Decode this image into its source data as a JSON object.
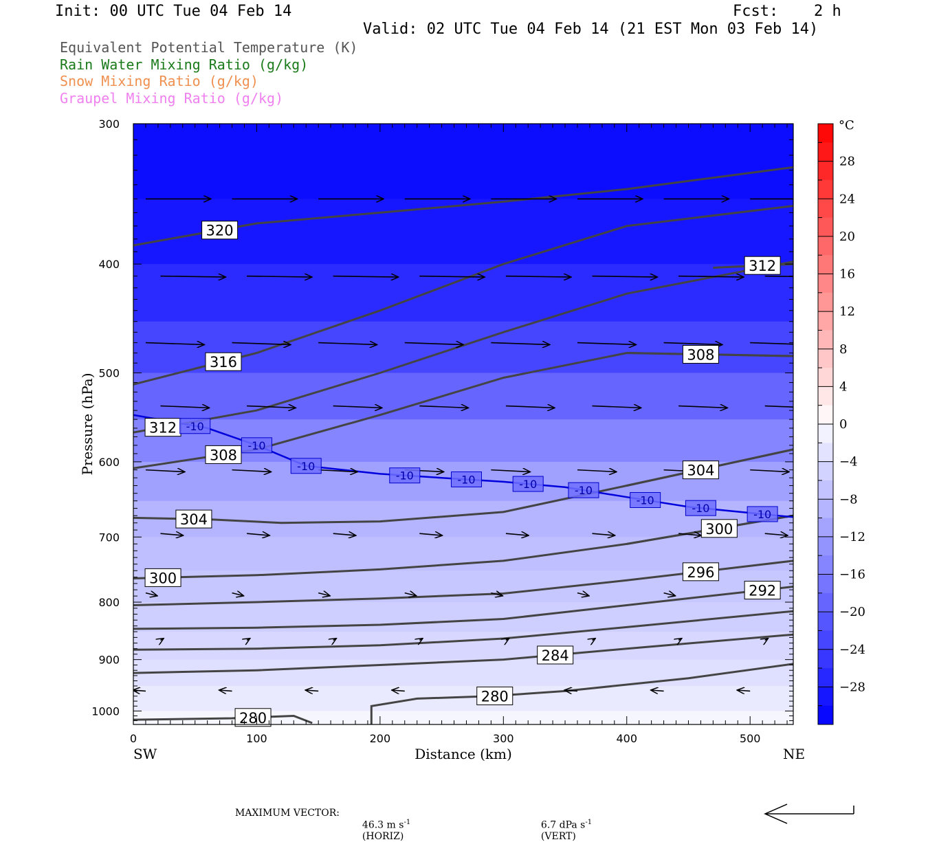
{
  "header": {
    "init": "Init: 00 UTC Tue 04 Feb 14",
    "fcst_label": "Fcst:",
    "fcst_value": "2 h",
    "valid": "Valid: 02 UTC Tue 04 Feb 14 (21 EST Mon 03 Feb 14)"
  },
  "legend": [
    {
      "label": "Equivalent Potential Temperature (K)",
      "color": "#555555"
    },
    {
      "label": "Rain Water Mixing Ratio (g/kg)",
      "color": "#1a7a1a"
    },
    {
      "label": "Snow Mixing Ratio (g/kg)",
      "color": "#f09050"
    },
    {
      "label": "Graupel Mixing Ratio (g/kg)",
      "color": "#f080f0"
    }
  ],
  "footer": {
    "max_vector_label": "MAXIMUM VECTOR:",
    "horiz_value": "46.3 m s",
    "horiz_exp": "-1",
    "horiz_unit": "(HORIZ)",
    "vert_value": "6.7 dPa s",
    "vert_exp": "-1",
    "vert_unit": "(VERT)"
  },
  "chart_data": {
    "type": "heatmap",
    "title": "",
    "xlabel": "Distance (km)",
    "ylabel": "Pressure (hPa)",
    "xlim": [
      0,
      535
    ],
    "ylim": [
      1028,
      300
    ],
    "y_scale": "log",
    "x_ticks": [
      0,
      100,
      200,
      300,
      400,
      500
    ],
    "y_ticks": [
      300,
      400,
      500,
      600,
      700,
      800,
      900,
      1000
    ],
    "x_end_labels": {
      "left": "SW",
      "right": "NE"
    },
    "colorbar": {
      "unit": "°C",
      "ticks": [
        28,
        24,
        20,
        16,
        12,
        8,
        4,
        0,
        -4,
        -8,
        -12,
        -16,
        -20,
        -24,
        -28
      ],
      "range": [
        -32,
        32
      ],
      "positive_color": "#ff0000",
      "negative_color": "#0000ff"
    },
    "temperature_layers": [
      {
        "p": 300,
        "t": -31
      },
      {
        "p": 350,
        "t": -30
      },
      {
        "p": 400,
        "t": -28
      },
      {
        "p": 450,
        "t": -25
      },
      {
        "p": 500,
        "t": -21
      },
      {
        "p": 550,
        "t": -17
      },
      {
        "p": 600,
        "t": -13
      },
      {
        "p": 650,
        "t": -10
      },
      {
        "p": 700,
        "t": -8
      },
      {
        "p": 750,
        "t": -7
      },
      {
        "p": 800,
        "t": -6
      },
      {
        "p": 850,
        "t": -5
      },
      {
        "p": 900,
        "t": -4
      },
      {
        "p": 950,
        "t": -3
      },
      {
        "p": 1000,
        "t": -1
      },
      {
        "p": 1028,
        "t": 0
      }
    ],
    "isotherm_minus10": {
      "label": "-10",
      "points": [
        [
          0,
          545
        ],
        [
          60,
          560
        ],
        [
          100,
          580
        ],
        [
          140,
          605
        ],
        [
          200,
          615
        ],
        [
          250,
          620
        ],
        [
          300,
          625
        ],
        [
          350,
          632
        ],
        [
          400,
          645
        ],
        [
          450,
          658
        ],
        [
          535,
          672
        ]
      ],
      "label_x": [
        50,
        100,
        140,
        220,
        270,
        320,
        365,
        415,
        460,
        510
      ]
    },
    "theta_e_contours": [
      {
        "label": "320",
        "points": [
          [
            0,
            385
          ],
          [
            100,
            368
          ],
          [
            200,
            360
          ],
          [
            300,
            352
          ],
          [
            400,
            343
          ],
          [
            535,
            328
          ]
        ],
        "label_x": 70
      },
      {
        "label": "316",
        "points": [
          [
            0,
            512
          ],
          [
            100,
            480
          ],
          [
            200,
            440
          ],
          [
            300,
            400
          ],
          [
            400,
            370
          ],
          [
            535,
            355
          ]
        ],
        "label_x": 73
      },
      {
        "label": "312",
        "points": [
          [
            0,
            565
          ],
          [
            100,
            540
          ],
          [
            200,
            500
          ],
          [
            300,
            460
          ],
          [
            400,
            425
          ],
          [
            535,
            398
          ]
        ],
        "label_x": 24
      },
      {
        "label": "312",
        "points": [
          [
            470,
            403
          ],
          [
            535,
            400
          ]
        ],
        "label_x": 510
      },
      {
        "label": "308",
        "points": [
          [
            0,
            608
          ],
          [
            100,
            585
          ],
          [
            200,
            545
          ],
          [
            300,
            505
          ],
          [
            400,
            480
          ],
          [
            535,
            483
          ]
        ],
        "label_x": 73
      },
      {
        "label": "308",
        "points": [
          [
            400,
            480
          ],
          [
            535,
            483
          ]
        ],
        "label_x": 460
      },
      {
        "label": "304",
        "points": [
          [
            0,
            673
          ],
          [
            60,
            675
          ],
          [
            120,
            680
          ],
          [
            200,
            678
          ],
          [
            300,
            665
          ],
          [
            400,
            630
          ],
          [
            535,
            585
          ]
        ],
        "label_x": 49
      },
      {
        "label": "304",
        "points": [
          [
            400,
            630
          ],
          [
            535,
            585
          ]
        ],
        "label_x": 460
      },
      {
        "label": "300",
        "points": [
          [
            0,
            762
          ],
          [
            100,
            757
          ],
          [
            200,
            748
          ],
          [
            300,
            735
          ],
          [
            400,
            710
          ],
          [
            535,
            670
          ]
        ],
        "label_x": 24
      },
      {
        "label": "300",
        "points": [
          [
            400,
            710
          ],
          [
            535,
            670
          ]
        ],
        "label_x": 475
      },
      {
        "label": "296",
        "points": [
          [
            0,
            805
          ],
          [
            100,
            800
          ],
          [
            200,
            794
          ],
          [
            300,
            786
          ],
          [
            400,
            765
          ],
          [
            535,
            735
          ]
        ],
        "label_x": 460
      },
      {
        "label": "292",
        "points": [
          [
            0,
            845
          ],
          [
            100,
            843
          ],
          [
            200,
            838
          ],
          [
            300,
            828
          ],
          [
            400,
            805
          ],
          [
            535,
            775
          ]
        ],
        "label_x": 510
      },
      {
        "label": "",
        "points": [
          [
            0,
            882
          ],
          [
            100,
            880
          ],
          [
            200,
            874
          ],
          [
            300,
            862
          ],
          [
            400,
            842
          ],
          [
            535,
            815
          ]
        ],
        "label_x": null
      },
      {
        "label": "284",
        "points": [
          [
            0,
            925
          ],
          [
            100,
            920
          ],
          [
            200,
            910
          ],
          [
            300,
            900
          ],
          [
            400,
            880
          ],
          [
            535,
            855
          ]
        ],
        "label_x": 342
      },
      {
        "label": "280",
        "points": [
          [
            0,
            1018
          ],
          [
            80,
            1015
          ],
          [
            130,
            1010
          ],
          [
            145,
            1025
          ]
        ],
        "label_x": 97
      },
      {
        "label": "280",
        "points": [
          [
            193,
            1028
          ],
          [
            193,
            990
          ],
          [
            230,
            975
          ],
          [
            290,
            970
          ],
          [
            350,
            960
          ],
          [
            450,
            935
          ],
          [
            535,
            908
          ]
        ],
        "label_x": 293
      }
    ],
    "wind_vectors": [
      {
        "p": 350,
        "u": 1.0,
        "v": 0.0
      },
      {
        "p": 410,
        "u": 1.0,
        "v": -0.05
      },
      {
        "p": 470,
        "u": 0.9,
        "v": -0.1
      },
      {
        "p": 535,
        "u": 0.75,
        "v": -0.1
      },
      {
        "p": 610,
        "u": 0.6,
        "v": -0.1
      },
      {
        "p": 695,
        "u": 0.35,
        "v": -0.1
      },
      {
        "p": 785,
        "u": 0.18,
        "v": -0.15
      },
      {
        "p": 865,
        "u": 0.05,
        "v": 0.1
      },
      {
        "p": 960,
        "u": -0.2,
        "v": 0.05
      }
    ],
    "theta_e_unit": "K"
  },
  "axis_labels": {
    "x_ticks": [
      "0",
      "100",
      "200",
      "300",
      "400",
      "500"
    ],
    "y_ticks": [
      "300",
      "400",
      "500",
      "600",
      "700",
      "800",
      "900",
      "1000"
    ],
    "colorbar_ticks": [
      "28",
      "24",
      "20",
      "16",
      "12",
      "8",
      "4",
      "0",
      "−4",
      "−8",
      "−12",
      "−16",
      "−20",
      "−24",
      "−28"
    ]
  }
}
